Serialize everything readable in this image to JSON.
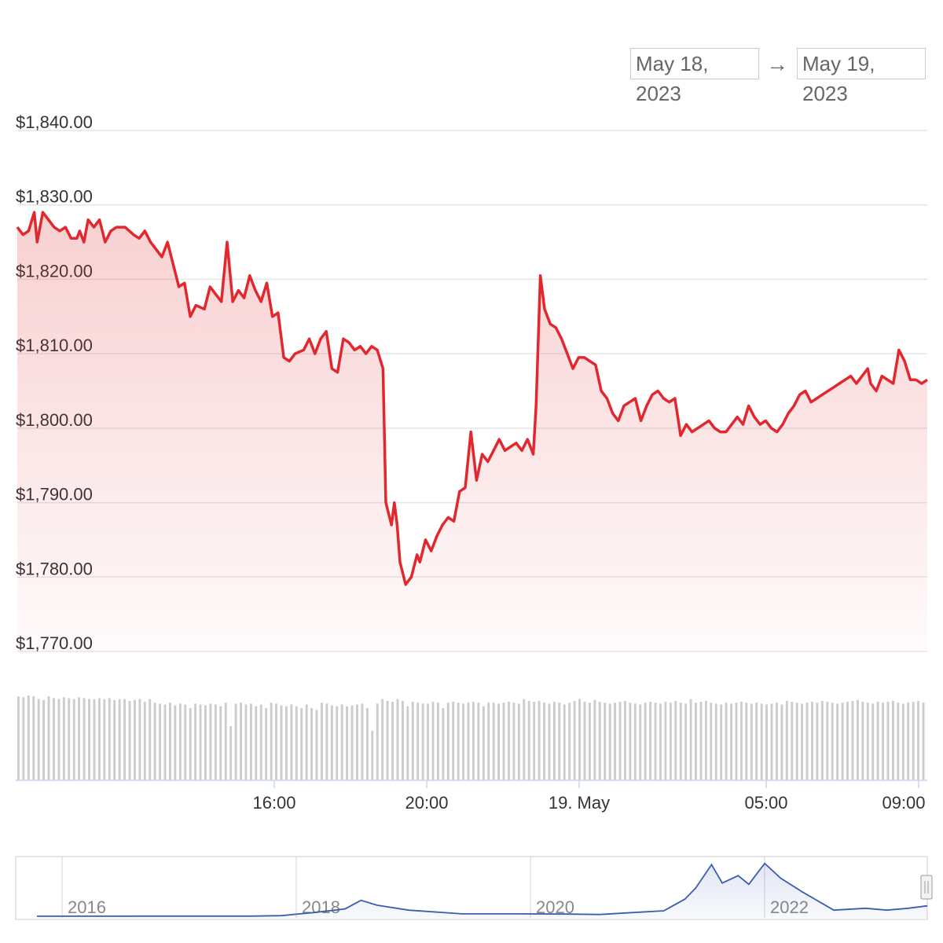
{
  "range_selector": {
    "from": "May 18, 2023",
    "arrow": "→",
    "to": "May 19, 2023"
  },
  "colors": {
    "price_line": "#e0282e",
    "area_top": "#f5c9c9",
    "grid": "#e6e6e6",
    "volume_bar": "#cccccc",
    "navigator_line": "#3b5db0",
    "navigator_fill": "#eef2fa"
  },
  "chart_data": [
    {
      "type": "area",
      "series": [
        {
          "values_note_hidden": true
        }
      ],
      "y_ticks": [
        "$1,840.00",
        "$1,830.00",
        "$1,820.00",
        "$1,810.00",
        "$1,800.00",
        "$1,790.00",
        "$1,780.00",
        "$1,770.00"
      ],
      "x_ticks": [
        "16:00",
        "20:00",
        "19. May",
        "05:00",
        "09:00"
      ],
      "ylim": [
        1770,
        1840
      ],
      "x_unit": "hours since 2023-05-18 09:15",
      "price": [
        [
          0.0,
          1827
        ],
        [
          0.2,
          1826
        ],
        [
          0.4,
          1826.5
        ],
        [
          0.6,
          1829
        ],
        [
          0.7,
          1825
        ],
        [
          0.9,
          1829
        ],
        [
          1.1,
          1828
        ],
        [
          1.3,
          1827
        ],
        [
          1.5,
          1826.5
        ],
        [
          1.7,
          1827
        ],
        [
          1.9,
          1825.5
        ],
        [
          2.1,
          1825.5
        ],
        [
          2.2,
          1826.5
        ],
        [
          2.35,
          1825
        ],
        [
          2.5,
          1828
        ],
        [
          2.7,
          1827
        ],
        [
          2.9,
          1828
        ],
        [
          3.1,
          1825
        ],
        [
          3.3,
          1826.5
        ],
        [
          3.5,
          1827
        ],
        [
          3.8,
          1827
        ],
        [
          4.1,
          1826
        ],
        [
          4.3,
          1825.5
        ],
        [
          4.5,
          1826.5
        ],
        [
          4.7,
          1825
        ],
        [
          4.9,
          1824
        ],
        [
          5.1,
          1823
        ],
        [
          5.3,
          1825
        ],
        [
          5.5,
          1822
        ],
        [
          5.7,
          1819
        ],
        [
          5.9,
          1819.5
        ],
        [
          6.1,
          1815
        ],
        [
          6.3,
          1816.5
        ],
        [
          6.6,
          1816
        ],
        [
          6.8,
          1819
        ],
        [
          7.0,
          1818
        ],
        [
          7.2,
          1817
        ],
        [
          7.4,
          1825
        ],
        [
          7.6,
          1817
        ],
        [
          7.8,
          1818.5
        ],
        [
          8.0,
          1817.5
        ],
        [
          8.2,
          1820.5
        ],
        [
          8.4,
          1818.5
        ],
        [
          8.6,
          1817
        ],
        [
          8.8,
          1819.5
        ],
        [
          9.0,
          1815
        ],
        [
          9.2,
          1815.5
        ],
        [
          9.4,
          1809.5
        ],
        [
          9.6,
          1809
        ],
        [
          9.8,
          1810
        ],
        [
          10.1,
          1810.5
        ],
        [
          10.3,
          1812
        ],
        [
          10.5,
          1810
        ],
        [
          10.7,
          1812
        ],
        [
          10.9,
          1813
        ],
        [
          11.1,
          1808
        ],
        [
          11.3,
          1807.5
        ],
        [
          11.5,
          1812
        ],
        [
          11.7,
          1811.5
        ],
        [
          11.9,
          1810.5
        ],
        [
          12.1,
          1811
        ],
        [
          12.3,
          1810
        ],
        [
          12.5,
          1811
        ],
        [
          12.7,
          1810.5
        ],
        [
          12.9,
          1808
        ],
        [
          13.0,
          1790
        ],
        [
          13.2,
          1787
        ],
        [
          13.3,
          1790
        ],
        [
          13.4,
          1787
        ],
        [
          13.5,
          1782
        ],
        [
          13.7,
          1779
        ],
        [
          13.9,
          1780
        ],
        [
          14.1,
          1783
        ],
        [
          14.2,
          1782
        ],
        [
          14.4,
          1785
        ],
        [
          14.6,
          1783.5
        ],
        [
          14.8,
          1785.5
        ],
        [
          15.0,
          1787
        ],
        [
          15.2,
          1788
        ],
        [
          15.4,
          1787.5
        ],
        [
          15.6,
          1791.5
        ],
        [
          15.8,
          1792
        ],
        [
          16.0,
          1799.5
        ],
        [
          16.2,
          1793
        ],
        [
          16.4,
          1796.5
        ],
        [
          16.6,
          1795.5
        ],
        [
          16.8,
          1797
        ],
        [
          17.0,
          1798.5
        ],
        [
          17.2,
          1797
        ],
        [
          17.4,
          1797.5
        ],
        [
          17.6,
          1798
        ],
        [
          17.8,
          1797
        ],
        [
          18.0,
          1798.5
        ],
        [
          18.2,
          1796.5
        ],
        [
          18.3,
          1803
        ],
        [
          18.45,
          1820.5
        ],
        [
          18.6,
          1816
        ],
        [
          18.8,
          1814
        ],
        [
          19.0,
          1813.5
        ],
        [
          19.2,
          1812
        ],
        [
          19.4,
          1810
        ],
        [
          19.6,
          1808
        ],
        [
          19.8,
          1809.5
        ],
        [
          20.0,
          1809.5
        ],
        [
          20.2,
          1809
        ],
        [
          20.4,
          1808.5
        ],
        [
          20.6,
          1805
        ],
        [
          20.8,
          1804
        ],
        [
          21.0,
          1802
        ],
        [
          21.2,
          1801
        ],
        [
          21.4,
          1803
        ],
        [
          21.6,
          1803.5
        ],
        [
          21.8,
          1804
        ],
        [
          22.0,
          1801
        ],
        [
          22.2,
          1803
        ],
        [
          22.4,
          1804.5
        ],
        [
          22.6,
          1805
        ],
        [
          22.8,
          1804
        ],
        [
          23.0,
          1803.5
        ],
        [
          23.2,
          1804
        ],
        [
          23.4,
          1799
        ],
        [
          23.6,
          1800.5
        ],
        [
          23.8,
          1799.5
        ],
        [
          24.0,
          1800
        ],
        [
          24.2,
          1800.5
        ],
        [
          24.4,
          1801
        ],
        [
          24.6,
          1800
        ],
        [
          24.8,
          1799.5
        ],
        [
          25.0,
          1799.5
        ],
        [
          25.2,
          1800.5
        ],
        [
          25.4,
          1801.5
        ],
        [
          25.6,
          1800.5
        ],
        [
          25.8,
          1803
        ],
        [
          26.0,
          1801.5
        ],
        [
          26.2,
          1800.5
        ],
        [
          26.4,
          1801
        ],
        [
          26.6,
          1800
        ],
        [
          26.8,
          1799.5
        ],
        [
          27.0,
          1800.5
        ],
        [
          27.2,
          1802
        ],
        [
          27.4,
          1803
        ],
        [
          27.6,
          1804.5
        ],
        [
          27.8,
          1805
        ],
        [
          28.0,
          1803.5
        ],
        [
          28.2,
          1804
        ],
        [
          28.4,
          1804.5
        ],
        [
          28.6,
          1805
        ],
        [
          28.8,
          1805.5
        ],
        [
          29.0,
          1806
        ],
        [
          29.2,
          1806.5
        ],
        [
          29.4,
          1807
        ],
        [
          29.6,
          1806
        ],
        [
          29.8,
          1807
        ],
        [
          30.0,
          1808
        ],
        [
          30.1,
          1806
        ],
        [
          30.3,
          1805
        ],
        [
          30.5,
          1807
        ],
        [
          30.7,
          1806.5
        ],
        [
          30.9,
          1806
        ],
        [
          31.1,
          1810.5
        ],
        [
          31.3,
          1809
        ],
        [
          31.5,
          1806.5
        ],
        [
          31.7,
          1806.5
        ],
        [
          31.9,
          1806
        ],
        [
          32.1,
          1806.5
        ]
      ],
      "volume_note": "relative volume bars 0-1",
      "volume": [
        0.93,
        0.92,
        0.94,
        0.93,
        0.9,
        0.89,
        0.93,
        0.91,
        0.9,
        0.92,
        0.91,
        0.9,
        0.92,
        0.91,
        0.9,
        0.9,
        0.91,
        0.9,
        0.91,
        0.89,
        0.9,
        0.9,
        0.88,
        0.89,
        0.9,
        0.87,
        0.9,
        0.86,
        0.85,
        0.84,
        0.86,
        0.83,
        0.85,
        0.84,
        0.8,
        0.85,
        0.84,
        0.83,
        0.85,
        0.84,
        0.82,
        0.86,
        0.6,
        0.85,
        0.86,
        0.84,
        0.85,
        0.82,
        0.84,
        0.8,
        0.86,
        0.85,
        0.83,
        0.82,
        0.84,
        0.82,
        0.8,
        0.84,
        0.8,
        0.78,
        0.86,
        0.85,
        0.83,
        0.82,
        0.84,
        0.82,
        0.83,
        0.84,
        0.85,
        0.8,
        0.55,
        0.85,
        0.9,
        0.88,
        0.87,
        0.9,
        0.88,
        0.82,
        0.87,
        0.86,
        0.85,
        0.85,
        0.87,
        0.86,
        0.8,
        0.86,
        0.87,
        0.86,
        0.85,
        0.86,
        0.87,
        0.86,
        0.82,
        0.86,
        0.86,
        0.85,
        0.86,
        0.87,
        0.86,
        0.85,
        0.9,
        0.88,
        0.87,
        0.88,
        0.86,
        0.85,
        0.87,
        0.86,
        0.84,
        0.86,
        0.88,
        0.9,
        0.87,
        0.86,
        0.89,
        0.87,
        0.86,
        0.85,
        0.86,
        0.87,
        0.88,
        0.86,
        0.85,
        0.84,
        0.86,
        0.87,
        0.86,
        0.85,
        0.87,
        0.86,
        0.88,
        0.86,
        0.85,
        0.9,
        0.86,
        0.87,
        0.88,
        0.86,
        0.85,
        0.84,
        0.86,
        0.85,
        0.86,
        0.87,
        0.86,
        0.85,
        0.86,
        0.85,
        0.84,
        0.85,
        0.86,
        0.84,
        0.88,
        0.87,
        0.86,
        0.85,
        0.86,
        0.87,
        0.86,
        0.88,
        0.87,
        0.86,
        0.85,
        0.86,
        0.87,
        0.88,
        0.89,
        0.87,
        0.86,
        0.85,
        0.87,
        0.86,
        0.87,
        0.88,
        0.86,
        0.85,
        0.86,
        0.87,
        0.88,
        0.86
      ]
    },
    {
      "type": "line",
      "role": "navigator",
      "x_ticks": [
        "2016",
        "2018",
        "2020",
        "2022"
      ],
      "x_unit": "year",
      "values": [
        [
          2015.0,
          0.5
        ],
        [
          2015.5,
          0.8
        ],
        [
          2016.0,
          1
        ],
        [
          2016.5,
          1.5
        ],
        [
          2017.0,
          1.5
        ],
        [
          2017.3,
          5
        ],
        [
          2017.6,
          30
        ],
        [
          2017.9,
          60
        ],
        [
          2018.05,
          130
        ],
        [
          2018.2,
          90
        ],
        [
          2018.5,
          50
        ],
        [
          2019.0,
          20
        ],
        [
          2019.5,
          20
        ],
        [
          2020.0,
          18
        ],
        [
          2020.3,
          15
        ],
        [
          2020.6,
          30
        ],
        [
          2020.9,
          45
        ],
        [
          2021.1,
          140
        ],
        [
          2021.2,
          230
        ],
        [
          2021.35,
          420
        ],
        [
          2021.45,
          270
        ],
        [
          2021.6,
          330
        ],
        [
          2021.7,
          260
        ],
        [
          2021.85,
          430
        ],
        [
          2022.0,
          310
        ],
        [
          2022.2,
          200
        ],
        [
          2022.5,
          50
        ],
        [
          2022.8,
          65
        ],
        [
          2023.0,
          50
        ],
        [
          2023.2,
          65
        ],
        [
          2023.38,
          85
        ]
      ]
    }
  ]
}
